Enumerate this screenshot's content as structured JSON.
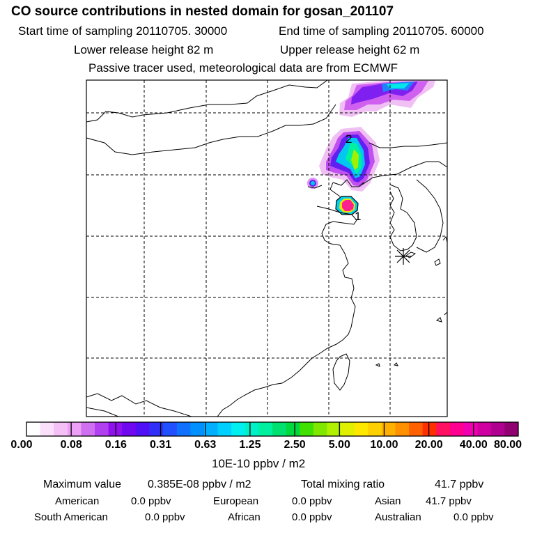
{
  "header": {
    "title": "CO  source contributions in nested domain for gosan_201107",
    "start_label": "Start time of sampling 20110705. 30000",
    "end_label": "End time of sampling 20110705. 60000",
    "lower_label": "Lower release height   82 m",
    "upper_label": "Upper release height   62 m",
    "note": "Passive tracer used, meteorological data are from ECMWF"
  },
  "map": {
    "markers": [
      {
        "label": "1"
      },
      {
        "label": "2"
      }
    ],
    "receptor": "gosan-receptor-star"
  },
  "colorbar": {
    "unit": "10E-10 ppbv / m2",
    "ticks": [
      "0.00",
      "0.08",
      "0.16",
      "0.31",
      "0.63",
      "1.25",
      "2.50",
      "5.00",
      "10.00",
      "20.00",
      "40.00",
      "80.00"
    ],
    "colors": [
      "#ffffff",
      "#fae0fa",
      "#f5c0f5",
      "#eda0f5",
      "#d070f0",
      "#b040f0",
      "#9010ee",
      "#7008f0",
      "#5010f5",
      "#3030f8",
      "#2050ff",
      "#1070ff",
      "#0090ff",
      "#00b0ff",
      "#00d0ff",
      "#00f0f0",
      "#00f0c8",
      "#00f0a0",
      "#00e070",
      "#00d840",
      "#40e000",
      "#80e800",
      "#b0f000",
      "#e0f000",
      "#ffe800",
      "#ffd000",
      "#ffb000",
      "#ff9000",
      "#ff6000",
      "#ff3000",
      "#ff1060",
      "#ff0090",
      "#f000b0",
      "#d000a0",
      "#b00090",
      "#900070"
    ]
  },
  "stats": {
    "max_label": "Maximum value",
    "max_value": "0.385E-08 ppbv / m2",
    "total_label": "Total mixing ratio",
    "total_value": "41.7 ppbv",
    "regions": [
      {
        "name": "American",
        "value": "0.0 ppbv"
      },
      {
        "name": "European",
        "value": "0.0 ppbv"
      },
      {
        "name": "Asian",
        "value": "41.7 ppbv"
      },
      {
        "name": "South American",
        "value": "0.0 ppbv"
      },
      {
        "name": "African",
        "value": "0.0 ppbv"
      },
      {
        "name": "Australian",
        "value": "0.0 ppbv"
      }
    ]
  }
}
